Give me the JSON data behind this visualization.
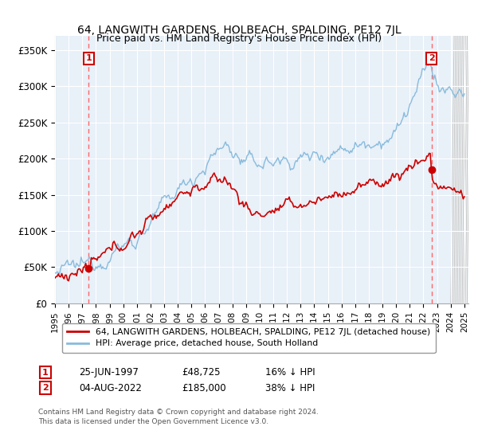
{
  "title": "64, LANGWITH GARDENS, HOLBEACH, SPALDING, PE12 7JL",
  "subtitle": "Price paid vs. HM Land Registry's House Price Index (HPI)",
  "ylim": [
    0,
    370000
  ],
  "yticks": [
    0,
    50000,
    100000,
    150000,
    200000,
    250000,
    300000,
    350000
  ],
  "ytick_labels": [
    "£0",
    "£50K",
    "£100K",
    "£150K",
    "£200K",
    "£250K",
    "£300K",
    "£350K"
  ],
  "xlim_start": 1995.0,
  "xlim_end": 2025.3,
  "hpi_color": "#88bbdd",
  "price_color": "#cc0000",
  "dashed_color": "#ff6666",
  "annotation_box_color": "#cc0000",
  "plot_bg": "#e8f0f8",
  "legend_label1": "64, LANGWITH GARDENS, HOLBEACH, SPALDING, PE12 7JL (detached house)",
  "legend_label2": "HPI: Average price, detached house, South Holland",
  "ann1_date": "25-JUN-1997",
  "ann1_price": "£48,725",
  "ann1_note": "16% ↓ HPI",
  "ann1_x": 1997.48,
  "ann1_y": 48725,
  "ann2_date": "04-AUG-2022",
  "ann2_price": "£185,000",
  "ann2_note": "38% ↓ HPI",
  "ann2_x": 2022.59,
  "ann2_y": 185000,
  "footer1": "Contains HM Land Registry data © Crown copyright and database right 2024.",
  "footer2": "This data is licensed under the Open Government Licence v3.0."
}
